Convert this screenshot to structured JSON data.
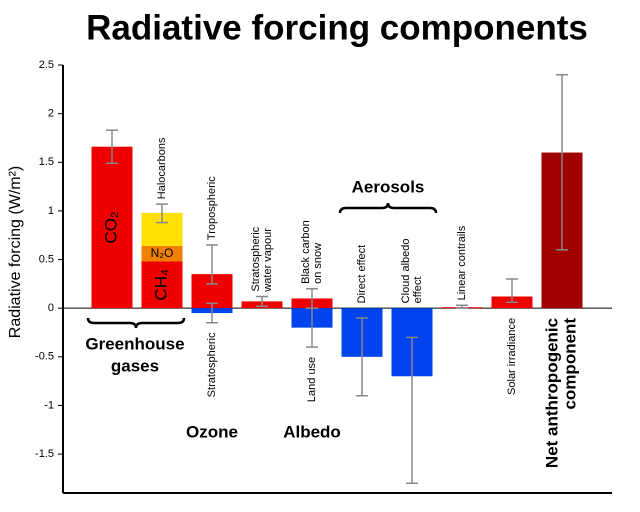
{
  "chart_data": {
    "type": "bar",
    "title": "Radiative forcing components",
    "y_label": "Radiative forcing (W/m²)",
    "ylim": [
      -1.9,
      2.5
    ],
    "yticks": [
      -1.5,
      -1,
      -0.5,
      0,
      0.5,
      1,
      1.5,
      2,
      2.5
    ],
    "bars": [
      {
        "segments": [
          {
            "name": "CO₂",
            "value": 1.66,
            "color": "#ee0000"
          }
        ],
        "errors": [
          [
            1.49,
            1.83
          ]
        ]
      },
      {
        "segments": [
          {
            "name": "CH₄",
            "value": 0.48,
            "color": "#ee0000"
          },
          {
            "name": "N₂O",
            "value": 0.16,
            "color": "#f08000"
          },
          {
            "name": "Halocarbons",
            "value": 0.34,
            "color": "#ffe000"
          }
        ],
        "errors": [
          [
            0.88,
            1.07
          ]
        ]
      },
      {
        "segments": [
          {
            "name": "Tropospheric",
            "value": 0.35,
            "color": "#ee0000"
          },
          {
            "name": "Stratospheric",
            "value": -0.05,
            "color": "#0044ee"
          }
        ],
        "errors": [
          [
            0.25,
            0.65
          ],
          [
            -0.15,
            0.05
          ]
        ]
      },
      {
        "segments": [
          {
            "name": [
              "Stratospheric",
              "water vapour"
            ],
            "value": 0.07,
            "color": "#ee0000"
          }
        ],
        "errors": [
          [
            0.02,
            0.12
          ]
        ]
      },
      {
        "segments": [
          {
            "name": [
              "Black carbon",
              "on snow"
            ],
            "value": 0.1,
            "color": "#ee0000"
          },
          {
            "name": "Land use",
            "value": -0.2,
            "color": "#0044ee"
          }
        ],
        "errors": [
          [
            0,
            0.2
          ],
          [
            -0.4,
            0
          ]
        ]
      },
      {
        "segments": [
          {
            "name": "Direct effect",
            "value": -0.5,
            "color": "#0044ee"
          }
        ],
        "errors": [
          [
            -0.9,
            -0.1
          ]
        ]
      },
      {
        "segments": [
          {
            "name": [
              "Cloud albedo",
              "effect"
            ],
            "value": -0.7,
            "color": "#0044ee"
          }
        ],
        "errors": [
          [
            -1.8,
            -0.3
          ]
        ]
      },
      {
        "segments": [
          {
            "name": "Linear contrails",
            "value": 0.01,
            "color": "#ee0000"
          }
        ],
        "errors": [
          [
            0.003,
            0.03
          ]
        ]
      },
      {
        "segments": [
          {
            "name": "Solar irradiance",
            "value": 0.12,
            "color": "#ee0000"
          }
        ],
        "errors": [
          [
            0.06,
            0.3
          ]
        ]
      },
      {
        "segments": [
          {
            "name": [
              "Net anthropogenic",
              "component"
            ],
            "value": 1.6,
            "color": "#a00000"
          }
        ],
        "errors": [
          [
            0.6,
            2.4
          ]
        ]
      }
    ],
    "groups": [
      {
        "label": [
          "Greenhouse",
          "gases"
        ]
      },
      {
        "label": "Ozone"
      },
      {
        "label": "Albedo"
      },
      {
        "label": "Aerosols"
      }
    ]
  }
}
